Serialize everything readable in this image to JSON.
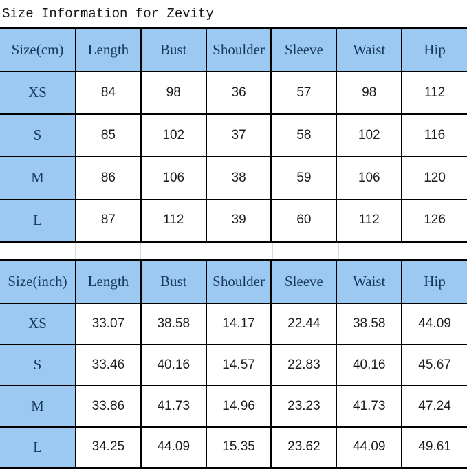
{
  "title": "Size Information for Zevity",
  "colors": {
    "header_bg": "#9cc9f1",
    "header_text": "#17375e",
    "border": "#000000",
    "cell_bg": "#ffffff",
    "data_text": "#1c1c1c",
    "gap_gridline": "#d9d9d9"
  },
  "chart_data": [
    {
      "type": "table",
      "unit": "cm",
      "headers": [
        "Size(cm)",
        "Length",
        "Bust",
        "Shoulder",
        "Sleeve",
        "Waist",
        "Hip"
      ],
      "rows": [
        [
          "XS",
          "84",
          "98",
          "36",
          "57",
          "98",
          "112"
        ],
        [
          "S",
          "85",
          "102",
          "37",
          "58",
          "102",
          "116"
        ],
        [
          "M",
          "86",
          "106",
          "38",
          "59",
          "106",
          "120"
        ],
        [
          "L",
          "87",
          "112",
          "39",
          "60",
          "112",
          "126"
        ]
      ]
    },
    {
      "type": "table",
      "unit": "inch",
      "headers": [
        "Size(inch)",
        "Length",
        "Bust",
        "Shoulder",
        "Sleeve",
        "Waist",
        "Hip"
      ],
      "rows": [
        [
          "XS",
          "33.07",
          "38.58",
          "14.17",
          "22.44",
          "38.58",
          "44.09"
        ],
        [
          "S",
          "33.46",
          "40.16",
          "14.57",
          "22.83",
          "40.16",
          "45.67"
        ],
        [
          "M",
          "33.86",
          "41.73",
          "14.96",
          "23.23",
          "41.73",
          "47.24"
        ],
        [
          "L",
          "34.25",
          "44.09",
          "15.35",
          "23.62",
          "44.09",
          "49.61"
        ]
      ]
    }
  ]
}
